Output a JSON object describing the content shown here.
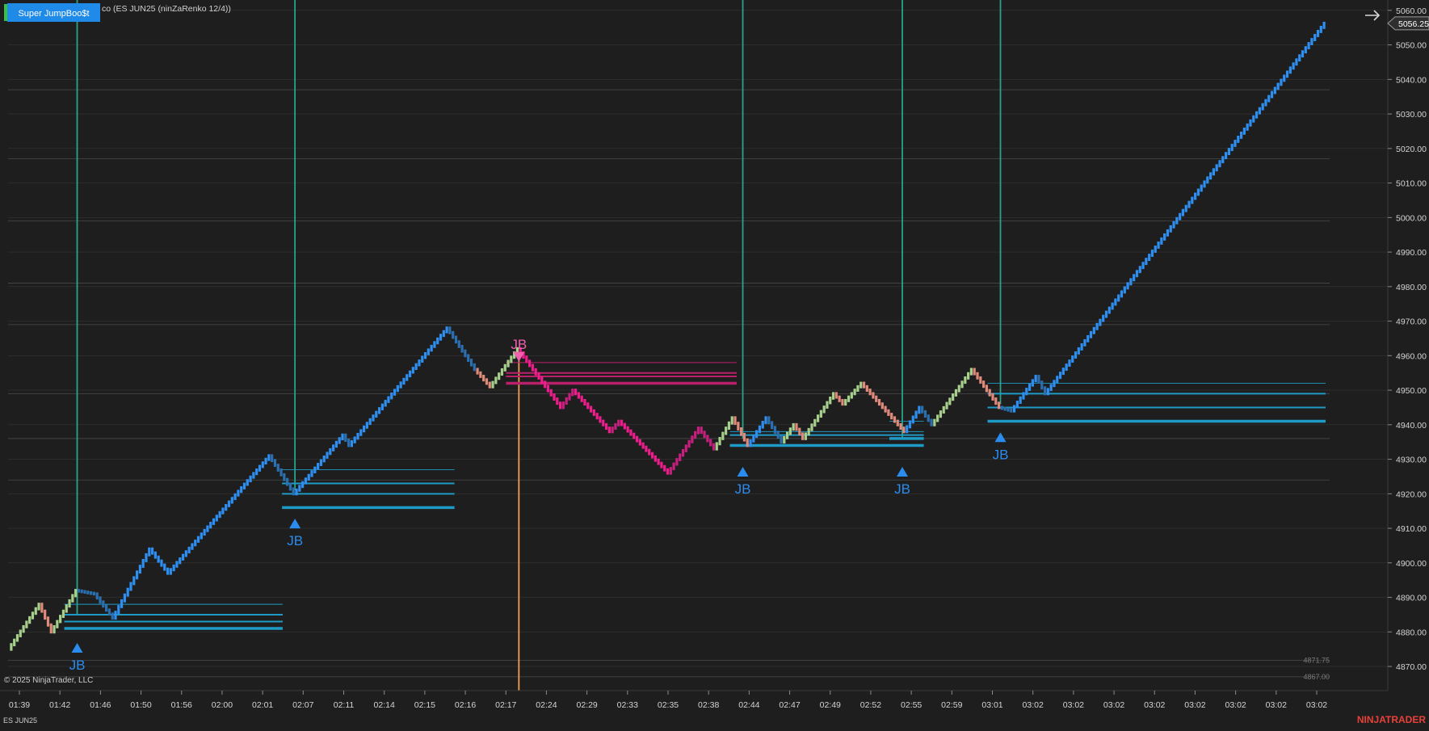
{
  "header": {
    "indicator_button": "Super JumpBoo$t",
    "chart_caption": "co (ES JUN25 (ninZaRenko 12/4))",
    "instrument_label": "ES JUN25",
    "copyright": "© 2025 NinjaTrader, LLC",
    "brand": "NINJATRADER",
    "arrow_icon": "arrow-right-icon"
  },
  "colors": {
    "background": "#1e1e1e",
    "grid": "#353535",
    "up_blue": "#2f8ff0",
    "dark_blue": "#2c6fae",
    "light_green": "#a8d08d",
    "salmon": "#e08a7c",
    "magenta": "#ee1d8c",
    "dark_magenta": "#c6207e",
    "signal_line": "#2aa388",
    "orange_line": "#f0a050",
    "level_line": "#1e9ac6",
    "short_level": "#b8206a",
    "jb_up": "#2b8cf0",
    "jb_down": "#f062ad",
    "brand_red": "#e8413a"
  },
  "chart_data": {
    "type": "line",
    "title": "",
    "xlabel": "",
    "ylabel": "",
    "x_categories": [
      "01:39",
      "01:42",
      "01:46",
      "01:50",
      "01:56",
      "02:00",
      "02:01",
      "02:07",
      "02:11",
      "02:14",
      "02:15",
      "02:16",
      "02:17",
      "02:24",
      "02:29",
      "02:33",
      "02:35",
      "02:38",
      "02:44",
      "02:47",
      "02:49",
      "02:52",
      "02:55",
      "02:59",
      "03:01",
      "03:02",
      "03:02",
      "03:02",
      "03:02",
      "03:02",
      "03:02",
      "03:02",
      "03:02"
    ],
    "ylim": [
      4863,
      5063
    ],
    "y_ticks": [
      4870,
      4880,
      4890,
      4900,
      4910,
      4920,
      4930,
      4940,
      4950,
      4960,
      4970,
      4980,
      4990,
      5000,
      5010,
      5020,
      5030,
      5040,
      5050,
      5060
    ],
    "last_price": "5056.25",
    "grid": true,
    "price_path": [
      {
        "bar": 0,
        "price": 4875,
        "segment": "salmon"
      },
      {
        "bar": 10,
        "price": 4888,
        "segment": "light_green"
      },
      {
        "bar": 14,
        "price": 4880,
        "segment": "salmon"
      },
      {
        "bar": 22,
        "price": 4892,
        "segment": "light_green"
      },
      {
        "bar": 28,
        "price": 4891,
        "segment": "dark_blue"
      },
      {
        "bar": 34,
        "price": 4884,
        "segment": "dark_blue"
      },
      {
        "bar": 46,
        "price": 4904,
        "segment": "up_blue"
      },
      {
        "bar": 52,
        "price": 4897,
        "segment": "up_blue"
      },
      {
        "bar": 85,
        "price": 4931,
        "segment": "up_blue"
      },
      {
        "bar": 93,
        "price": 4920,
        "segment": "dark_blue"
      },
      {
        "bar": 109,
        "price": 4937,
        "segment": "up_blue"
      },
      {
        "bar": 111,
        "price": 4934,
        "segment": "dark_blue"
      },
      {
        "bar": 143,
        "price": 4968,
        "segment": "up_blue"
      },
      {
        "bar": 152,
        "price": 4956,
        "segment": "dark_blue"
      },
      {
        "bar": 157,
        "price": 4951,
        "segment": "salmon"
      },
      {
        "bar": 166,
        "price": 4962,
        "segment": "light_green"
      },
      {
        "bar": 180,
        "price": 4945,
        "segment": "magenta"
      },
      {
        "bar": 184,
        "price": 4950,
        "segment": "dark_magenta"
      },
      {
        "bar": 196,
        "price": 4938,
        "segment": "magenta"
      },
      {
        "bar": 199,
        "price": 4941,
        "segment": "dark_magenta"
      },
      {
        "bar": 215,
        "price": 4926,
        "segment": "magenta"
      },
      {
        "bar": 225,
        "price": 4939,
        "segment": "dark_magenta"
      },
      {
        "bar": 230,
        "price": 4933,
        "segment": "dark_magenta"
      },
      {
        "bar": 236,
        "price": 4942,
        "segment": "light_green"
      },
      {
        "bar": 241,
        "price": 4934,
        "segment": "salmon"
      },
      {
        "bar": 247,
        "price": 4942,
        "segment": "up_blue"
      },
      {
        "bar": 252,
        "price": 4935,
        "segment": "dark_blue"
      },
      {
        "bar": 256,
        "price": 4940,
        "segment": "light_green"
      },
      {
        "bar": 259,
        "price": 4936,
        "segment": "salmon"
      },
      {
        "bar": 269,
        "price": 4949,
        "segment": "light_green"
      },
      {
        "bar": 272,
        "price": 4946,
        "segment": "salmon"
      },
      {
        "bar": 278,
        "price": 4952,
        "segment": "light_green"
      },
      {
        "bar": 292,
        "price": 4938,
        "segment": "salmon"
      },
      {
        "bar": 297,
        "price": 4945,
        "segment": "up_blue"
      },
      {
        "bar": 301,
        "price": 4940,
        "segment": "dark_blue"
      },
      {
        "bar": 314,
        "price": 4956,
        "segment": "light_green"
      },
      {
        "bar": 323,
        "price": 4945,
        "segment": "salmon"
      },
      {
        "bar": 327,
        "price": 4944,
        "segment": "dark_blue"
      },
      {
        "bar": 335,
        "price": 4954,
        "segment": "up_blue"
      },
      {
        "bar": 338,
        "price": 4949,
        "segment": "dark_blue"
      },
      {
        "bar": 429,
        "price": 5056.25,
        "segment": "up_blue"
      }
    ],
    "signals": [
      {
        "label": "JB",
        "direction": "long",
        "bar": 22,
        "price": 4881,
        "levels": [
          4888,
          4885,
          4883,
          4881
        ],
        "level_end_bar": 89
      },
      {
        "label": "JB",
        "direction": "long",
        "bar": 93,
        "price": 4917,
        "levels": [
          4927,
          4923,
          4920,
          4916
        ],
        "level_end_bar": 145
      },
      {
        "label": "JB",
        "direction": "short",
        "bar": 166,
        "price": 4962,
        "levels": [
          4958,
          4955,
          4954,
          4952
        ],
        "level_end_bar": 237
      },
      {
        "label": "JB",
        "direction": "long",
        "bar": 239,
        "price": 4932,
        "levels": [
          4938,
          4937,
          4934
        ],
        "level_end_bar": 298
      },
      {
        "label": "JB",
        "direction": "long",
        "bar": 291,
        "price": 4932,
        "levels": [
          4941,
          4936
        ],
        "level_end_bar": 298
      },
      {
        "label": "JB",
        "direction": "long",
        "bar": 323,
        "price": 4942,
        "levels": [
          4952,
          4949,
          4945,
          4941
        ],
        "level_end_bar": 429
      }
    ],
    "reference_levels": [
      4871.75,
      4867.0,
      4924,
      4936,
      4949,
      4969,
      4981,
      4999,
      5017,
      5037
    ],
    "reference_level_labels": [
      "4871.75",
      "4867.00"
    ]
  }
}
